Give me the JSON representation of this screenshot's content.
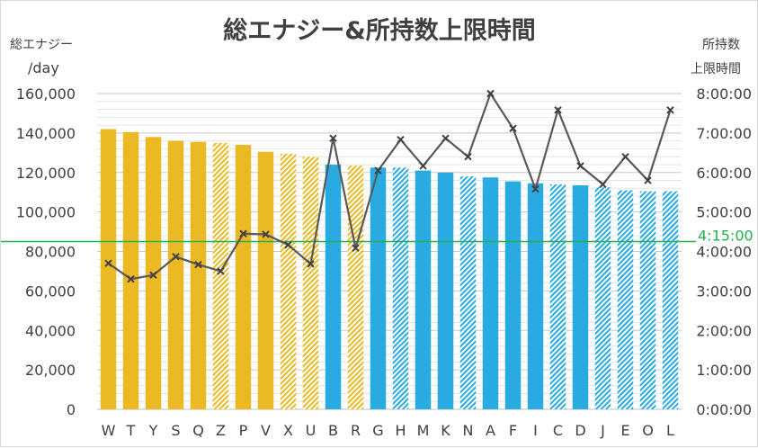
{
  "chart_data": {
    "type": "bar",
    "title": "総エナジー&所持数上限時間",
    "left_axis_label_line1": "総エナジー",
    "left_axis_label_line2": "/day",
    "right_axis_label_line1": "所持数",
    "right_axis_label_line2": "上限時間",
    "categories": [
      "W",
      "T",
      "Y",
      "S",
      "Q",
      "Z",
      "P",
      "V",
      "X",
      "U",
      "B",
      "R",
      "G",
      "H",
      "M",
      "K",
      "N",
      "A",
      "F",
      "I",
      "C",
      "D",
      "J",
      "E",
      "O",
      "L"
    ],
    "series": [
      {
        "axis": "left",
        "type": "bar",
        "values": [
          142000,
          140500,
          138000,
          136000,
          135500,
          135000,
          134000,
          130500,
          129500,
          128000,
          124000,
          123500,
          122500,
          122500,
          121000,
          120000,
          118000,
          117500,
          115500,
          114500,
          114000,
          113500,
          112500,
          111000,
          110500,
          110500
        ],
        "colors": [
          "#ebb923",
          "#ebb923",
          "#ebb923",
          "#ebb923",
          "#ebb923",
          "#ebb923",
          "#ebb923",
          "#ebb923",
          "#ebb923",
          "#ebb923",
          "#29abe2",
          "#ebb923",
          "#29abe2",
          "#29abe2",
          "#29abe2",
          "#29abe2",
          "#29abe2",
          "#29abe2",
          "#29abe2",
          "#29abe2",
          "#29abe2",
          "#29abe2",
          "#29abe2",
          "#29abe2",
          "#29abe2",
          "#29abe2"
        ],
        "hatched": [
          false,
          false,
          false,
          false,
          false,
          true,
          false,
          false,
          true,
          true,
          false,
          true,
          false,
          true,
          false,
          false,
          true,
          false,
          false,
          false,
          true,
          false,
          true,
          true,
          true,
          true
        ]
      },
      {
        "axis": "right",
        "type": "line",
        "values": [
          "3:42:00",
          "3:18:00",
          "3:24:00",
          "3:52:00",
          "3:40:00",
          "3:30:00",
          "4:27:00",
          "4:26:00",
          "4:10:00",
          "3:41:00",
          "6:52:00",
          "4:05:00",
          "6:03:00",
          "6:50:00",
          "6:10:00",
          "6:52:00",
          "6:24:00",
          "8:00:00",
          "7:07:00",
          "5:35:00",
          "7:35:00",
          "6:10:00",
          "5:42:00",
          "6:24:00",
          "5:48:00",
          "7:35:00"
        ],
        "color": "#595959"
      }
    ],
    "ylim_left": [
      0,
      160000
    ],
    "ylim_right": [
      "0:00:00",
      "8:00:00"
    ],
    "y_left_ticks": [
      "0",
      "20,000",
      "40,000",
      "60,000",
      "80,000",
      "100,000",
      "120,000",
      "140,000",
      "160,000"
    ],
    "y_right_ticks": [
      "0:00:00",
      "1:00:00",
      "2:00:00",
      "3:00:00",
      "4:00:00",
      "5:00:00",
      "6:00:00",
      "7:00:00",
      "8:00:00"
    ],
    "reference_line": {
      "value": "4:15:00",
      "label": "4:15:00",
      "color": "#22b14c",
      "axis": "right"
    },
    "grid": true,
    "legend": "none"
  }
}
